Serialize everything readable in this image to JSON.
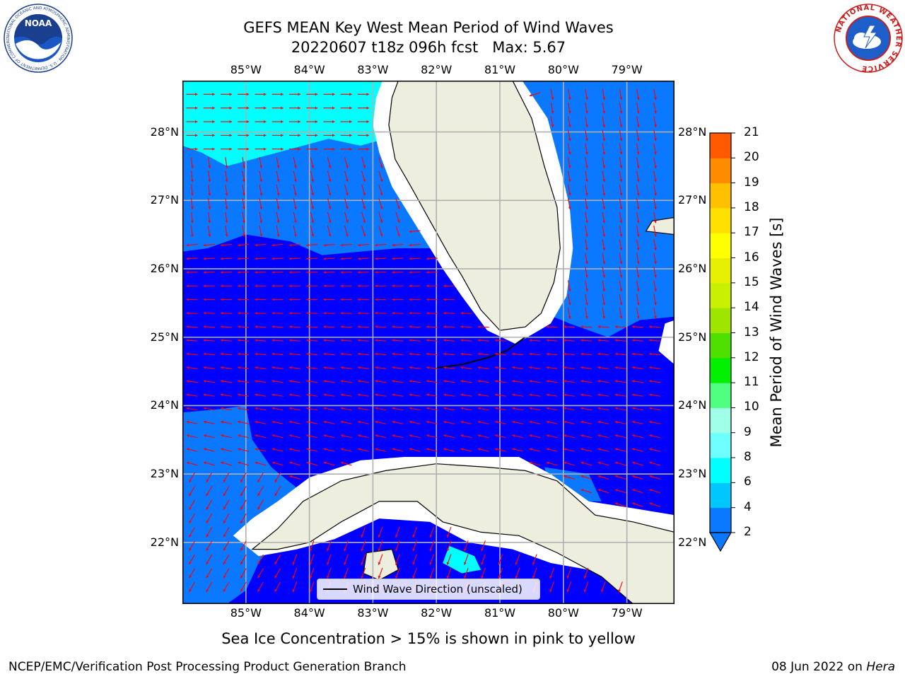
{
  "header": {
    "title_line1": "GEFS MEAN Key West Mean Period of Wind Waves",
    "title_line2": "20220607 t18z 096h fcst   Max: 5.67"
  },
  "logos": {
    "left": "NOAA",
    "left_ring": "NATIONAL OCEANIC AND ATMOSPHERIC ADMINISTRATION · U.S. DEPARTMENT OF COMMERCE",
    "right_ring": "NATIONAL WEATHER SERVICE"
  },
  "map": {
    "lon_labels": [
      "85°W",
      "84°W",
      "83°W",
      "82°W",
      "81°W",
      "80°W",
      "79°W"
    ],
    "lat_labels": [
      "28°N",
      "27°N",
      "26°N",
      "25°N",
      "24°N",
      "23°N",
      "22°N"
    ],
    "lon_range": [
      -86.0,
      -78.25
    ],
    "lat_range": [
      21.1,
      28.75
    ],
    "colors": {
      "land": "#eeeede",
      "sea_2_4": "#0a78ff",
      "sea_lt2": "#0000ff",
      "sea_4_6": "#00ffff",
      "nodata": "#ffffff",
      "arrow": "#ff0000",
      "grid": "#b0b0b0"
    },
    "legend_label": "Wind Wave Direction (unscaled)"
  },
  "colorbar": {
    "label": "Mean Period of Wind Waves [s]",
    "ticks": [
      "2",
      "4",
      "6",
      "8",
      "9",
      "10",
      "11",
      "12",
      "13",
      "14",
      "15",
      "16",
      "17",
      "18",
      "19",
      "20",
      "21"
    ],
    "colors": [
      "#0a78ff",
      "#00c8ff",
      "#00ffff",
      "#6effff",
      "#a0ffe8",
      "#50ff80",
      "#00f000",
      "#50e000",
      "#9ee600",
      "#c8f000",
      "#e6f000",
      "#ffff00",
      "#ffe000",
      "#ffc000",
      "#ff8c00",
      "#ff5a00",
      "#ff2800",
      "#ff0000"
    ]
  },
  "footer": {
    "note": "Sea Ice Concentration > 15% is shown in pink to yellow",
    "left": "NCEP/EMC/Verification Post Processing Product Generation Branch",
    "right_date": "08 Jun 2022 on ",
    "right_host": "Hera"
  }
}
